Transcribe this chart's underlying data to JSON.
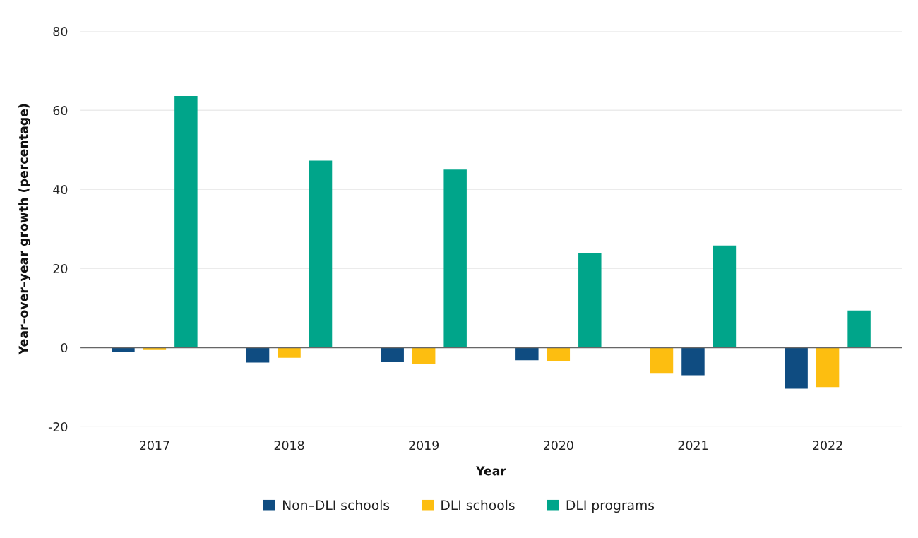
{
  "chart_data": {
    "type": "bar",
    "xlabel": "Year",
    "ylabel": "Year–over–year growth (percentage)",
    "categories": [
      "2017",
      "2018",
      "2019",
      "2020",
      "2021",
      "2022"
    ],
    "series": [
      {
        "name": "Non–DLI schools",
        "color": "#0f4c81",
        "colors": [
          "#0f4c81",
          "#0f4c81",
          "#0f4c81",
          "#0f4c81",
          "#fdbe10",
          "#0f4c81"
        ],
        "values": [
          -1.1,
          -3.8,
          -3.7,
          -3.2,
          -6.6,
          -10.4
        ]
      },
      {
        "name": "DLI schools",
        "color": "#fdbe10",
        "colors": [
          "#fdbe10",
          "#fdbe10",
          "#fdbe10",
          "#fdbe10",
          "#0f4c81",
          "#fdbe10"
        ],
        "values": [
          -0.6,
          -2.6,
          -4.1,
          -3.5,
          -7.0,
          -10.0
        ]
      },
      {
        "name": "DLI programs",
        "color": "#00a58a",
        "values": [
          63.6,
          47.3,
          45.0,
          23.8,
          25.8,
          9.4
        ]
      }
    ],
    "ylim": [
      -20,
      80
    ],
    "yticks": [
      -20,
      0,
      20,
      40,
      60,
      80
    ],
    "grid": "y",
    "legend": "bottom"
  }
}
